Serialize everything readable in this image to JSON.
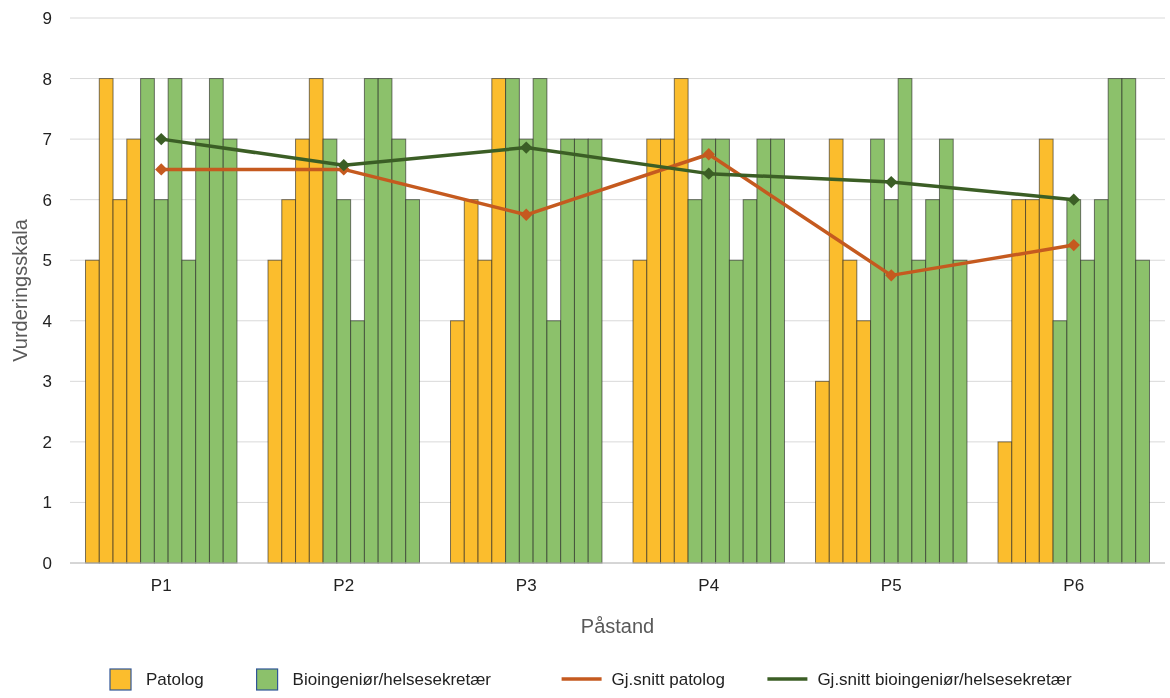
{
  "chart_data": {
    "type": "bar",
    "xlabel": "Påstand",
    "ylabel": "Vurderingsskala",
    "categories": [
      "P1",
      "P2",
      "P3",
      "P4",
      "P5",
      "P6"
    ],
    "ylim": [
      0,
      9
    ],
    "yticks": [
      0,
      1,
      2,
      3,
      4,
      5,
      6,
      7,
      8,
      9
    ],
    "grid": "y",
    "legend": "bottom",
    "marker": "diamond",
    "series": [
      {
        "name": "Patolog",
        "color": "#fbbd2d",
        "values": [
          5,
          5,
          4,
          5,
          3,
          2
        ]
      },
      {
        "color": "#fbbd2d",
        "values": [
          8,
          6,
          6,
          7,
          7,
          6
        ]
      },
      {
        "color": "#fbbd2d",
        "values": [
          6,
          7,
          5,
          7,
          5,
          6
        ]
      },
      {
        "color": "#fbbd2d",
        "values": [
          7,
          8,
          8,
          8,
          4,
          7
        ]
      },
      {
        "name": "Bioingeniør/helsesekretær",
        "color": "#8cc16b",
        "values": [
          8,
          7,
          8,
          6,
          7,
          4
        ]
      },
      {
        "color": "#8cc16b",
        "values": [
          6,
          6,
          7,
          7,
          6,
          6
        ]
      },
      {
        "color": "#8cc16b",
        "values": [
          8,
          4,
          8,
          7,
          8,
          5
        ]
      },
      {
        "color": "#8cc16b",
        "values": [
          5,
          8,
          4,
          5,
          5,
          6
        ]
      },
      {
        "color": "#8cc16b",
        "values": [
          7,
          8,
          7,
          6,
          6,
          8
        ]
      },
      {
        "color": "#8cc16b",
        "values": [
          8,
          7,
          7,
          7,
          7,
          8
        ]
      },
      {
        "color": "#8cc16b",
        "values": [
          7,
          6,
          7,
          7,
          5,
          5
        ]
      },
      {
        "name": "Gj.snitt patolog",
        "type": "line",
        "color": "#c55a1f",
        "values": [
          6.5,
          6.5,
          5.75,
          6.75,
          4.75,
          5.25
        ]
      },
      {
        "name": "Gj.snitt bioingeniør/helsesekretær",
        "type": "line",
        "color": "#3b5e25",
        "values": [
          7,
          6.57,
          6.86,
          6.43,
          6.29,
          6
        ]
      }
    ]
  }
}
